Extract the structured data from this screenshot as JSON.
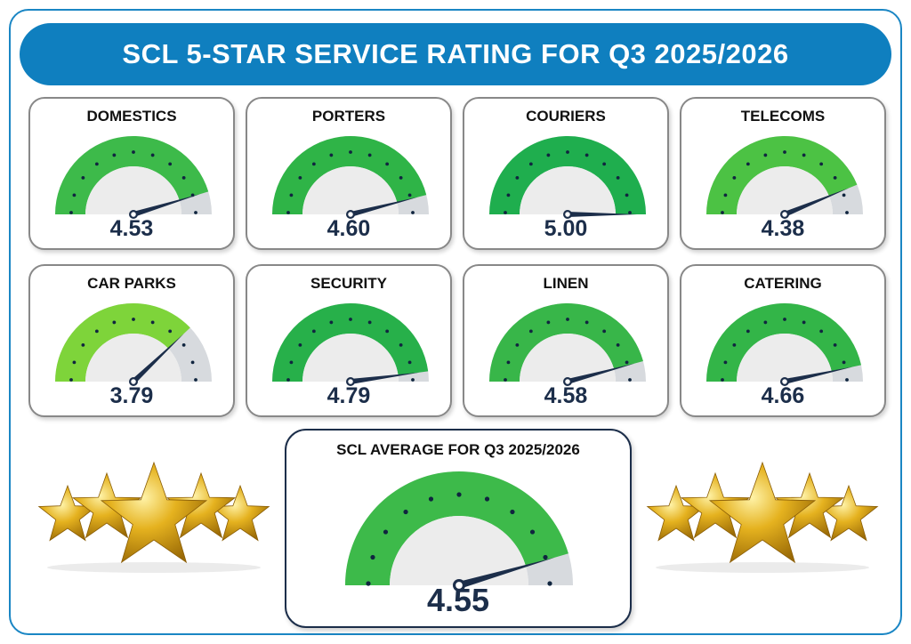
{
  "header": {
    "title": "SCL 5-STAR SERVICE RATING FOR Q3 2025/2026"
  },
  "scale": {
    "min": 0,
    "max": 5
  },
  "colors": {
    "banner": "#0f7fbf",
    "frame": "#1a86c4",
    "gauge_inner": "#ececec",
    "gauge_remainder": "#d7dade",
    "needle": "#1c2e4a",
    "value_text": "#1c2e4a"
  },
  "services": [
    {
      "name": "DOMESTICS",
      "rating": 4.53,
      "value_label": "4.53",
      "border_color": "#7b3fa0",
      "arc_color": "#3dba4a"
    },
    {
      "name": "PORTERS",
      "rating": 4.6,
      "value_label": "4.60",
      "border_color": "#2ea84a",
      "arc_color": "#2fb447"
    },
    {
      "name": "COURIERS",
      "rating": 5.0,
      "value_label": "5.00",
      "border_color": "#4fc9d6",
      "arc_color": "#1fae4e"
    },
    {
      "name": "TELECOMS",
      "rating": 4.38,
      "value_label": "4.38",
      "border_color": "#9cc35a",
      "arc_color": "#4cc244"
    },
    {
      "name": "CAR PARKS",
      "rating": 3.79,
      "value_label": "3.79",
      "border_color": "#f0c419",
      "arc_color": "#7ed43a"
    },
    {
      "name": "SECURITY",
      "rating": 4.79,
      "value_label": "4.79",
      "border_color": "#c8262e",
      "arc_color": "#27b04a"
    },
    {
      "name": "LINEN",
      "rating": 4.58,
      "value_label": "4.58",
      "border_color": "#8a8a8a",
      "arc_color": "#38b649"
    },
    {
      "name": "CATERING",
      "rating": 4.66,
      "value_label": "4.66",
      "border_color": "#2a9aa0",
      "arc_color": "#33b548"
    }
  ],
  "average": {
    "title": "SCL AVERAGE FOR Q3 2025/2026",
    "rating": 4.55,
    "value_label": "4.55",
    "border_color": "#1c2e4a",
    "arc_color": "#3dba4a"
  },
  "decorations": {
    "left": "gold-stars-icon",
    "right": "gold-stars-icon",
    "star_color": "#e5b21f"
  }
}
